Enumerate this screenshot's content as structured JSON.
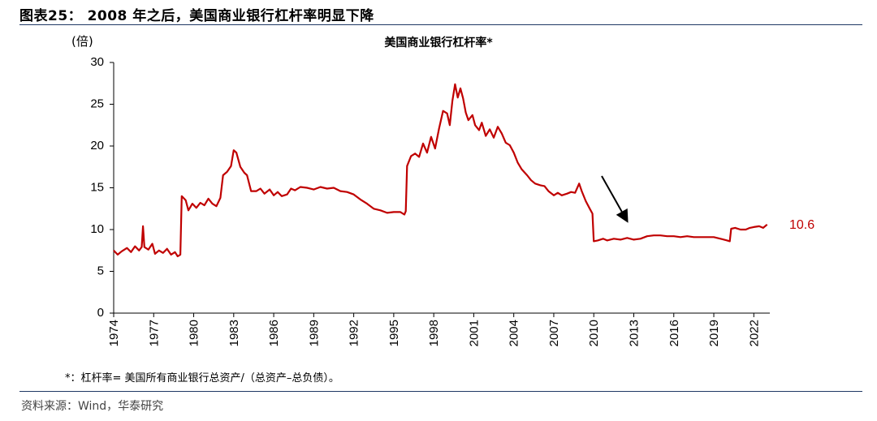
{
  "figure_title": "图表25： 2008 年之后，美国商业银行杠杆率明显下降",
  "unit_label": "(倍)",
  "note": "*：杠杆率= 美国所有商业银行总资产/（总资产–总负债）。",
  "source": "资料来源：Wind，华泰研究",
  "colors": {
    "series": "#c00000",
    "rule": "#1f3864",
    "axis": "#000000"
  },
  "chart_data": {
    "type": "line",
    "title": "美国商业银行杠杆率*",
    "xlabel": "",
    "ylabel": "(倍)",
    "ylim": [
      0,
      30
    ],
    "xlim": [
      1974,
      2023.2
    ],
    "y_ticks": [
      0,
      5,
      10,
      15,
      20,
      25,
      30
    ],
    "x_ticks": [
      "1974",
      "1977",
      "1980",
      "1983",
      "1986",
      "1989",
      "1992",
      "1995",
      "1998",
      "2001",
      "2004",
      "2007",
      "2010",
      "2013",
      "2016",
      "2019",
      "2022"
    ],
    "grid": false,
    "end_label": "10.6",
    "annotation": "arrow-down",
    "series": [
      {
        "values": [
          [
            1974.0,
            7.5
          ],
          [
            1974.3,
            7.0
          ],
          [
            1974.6,
            7.4
          ],
          [
            1975.0,
            7.8
          ],
          [
            1975.3,
            7.3
          ],
          [
            1975.6,
            8.0
          ],
          [
            1975.9,
            7.5
          ],
          [
            1976.1,
            7.9
          ],
          [
            1976.2,
            10.4
          ],
          [
            1976.3,
            7.9
          ],
          [
            1976.6,
            7.6
          ],
          [
            1976.9,
            8.3
          ],
          [
            1977.1,
            7.1
          ],
          [
            1977.4,
            7.5
          ],
          [
            1977.7,
            7.2
          ],
          [
            1978.0,
            7.7
          ],
          [
            1978.3,
            7.0
          ],
          [
            1978.6,
            7.3
          ],
          [
            1978.8,
            6.8
          ],
          [
            1979.0,
            7.0
          ],
          [
            1979.1,
            14.0
          ],
          [
            1979.4,
            13.5
          ],
          [
            1979.6,
            12.3
          ],
          [
            1979.9,
            13.1
          ],
          [
            1980.2,
            12.6
          ],
          [
            1980.5,
            13.2
          ],
          [
            1980.8,
            12.9
          ],
          [
            1981.1,
            13.7
          ],
          [
            1981.4,
            13.1
          ],
          [
            1981.7,
            12.8
          ],
          [
            1982.0,
            13.8
          ],
          [
            1982.2,
            16.5
          ],
          [
            1982.5,
            16.9
          ],
          [
            1982.8,
            17.6
          ],
          [
            1983.0,
            19.5
          ],
          [
            1983.2,
            19.2
          ],
          [
            1983.5,
            17.5
          ],
          [
            1983.8,
            16.8
          ],
          [
            1984.0,
            16.5
          ],
          [
            1984.3,
            14.6
          ],
          [
            1984.7,
            14.6
          ],
          [
            1985.0,
            14.9
          ],
          [
            1985.3,
            14.3
          ],
          [
            1985.7,
            14.8
          ],
          [
            1986.0,
            14.1
          ],
          [
            1986.3,
            14.5
          ],
          [
            1986.6,
            14.0
          ],
          [
            1987.0,
            14.2
          ],
          [
            1987.3,
            14.9
          ],
          [
            1987.6,
            14.7
          ],
          [
            1988.0,
            15.1
          ],
          [
            1988.5,
            15.0
          ],
          [
            1989.0,
            14.8
          ],
          [
            1989.5,
            15.1
          ],
          [
            1990.0,
            14.9
          ],
          [
            1990.5,
            15.0
          ],
          [
            1991.0,
            14.6
          ],
          [
            1991.5,
            14.5
          ],
          [
            1992.0,
            14.2
          ],
          [
            1992.5,
            13.6
          ],
          [
            1993.0,
            13.1
          ],
          [
            1993.5,
            12.5
          ],
          [
            1994.0,
            12.3
          ],
          [
            1994.5,
            12.0
          ],
          [
            1995.0,
            12.1
          ],
          [
            1995.5,
            12.1
          ],
          [
            1995.8,
            11.8
          ],
          [
            1995.9,
            12.2
          ],
          [
            1996.0,
            17.6
          ],
          [
            1996.3,
            18.8
          ],
          [
            1996.6,
            19.1
          ],
          [
            1996.9,
            18.7
          ],
          [
            1997.2,
            20.3
          ],
          [
            1997.5,
            19.2
          ],
          [
            1997.8,
            21.1
          ],
          [
            1998.1,
            19.7
          ],
          [
            1998.4,
            22.1
          ],
          [
            1998.7,
            24.2
          ],
          [
            1999.0,
            23.9
          ],
          [
            1999.2,
            22.5
          ],
          [
            1999.4,
            25.4
          ],
          [
            1999.6,
            27.4
          ],
          [
            1999.8,
            25.8
          ],
          [
            2000.0,
            26.9
          ],
          [
            2000.2,
            25.7
          ],
          [
            2000.4,
            24.0
          ],
          [
            2000.6,
            23.1
          ],
          [
            2000.9,
            23.7
          ],
          [
            2001.1,
            22.5
          ],
          [
            2001.4,
            21.9
          ],
          [
            2001.6,
            22.8
          ],
          [
            2001.9,
            21.2
          ],
          [
            2002.2,
            22.0
          ],
          [
            2002.5,
            21.0
          ],
          [
            2002.8,
            22.3
          ],
          [
            2003.1,
            21.5
          ],
          [
            2003.4,
            20.4
          ],
          [
            2003.7,
            20.1
          ],
          [
            2004.0,
            19.2
          ],
          [
            2004.3,
            18.0
          ],
          [
            2004.6,
            17.2
          ],
          [
            2005.0,
            16.5
          ],
          [
            2005.3,
            15.9
          ],
          [
            2005.6,
            15.5
          ],
          [
            2006.0,
            15.3
          ],
          [
            2006.3,
            15.2
          ],
          [
            2006.6,
            14.6
          ],
          [
            2007.0,
            14.1
          ],
          [
            2007.3,
            14.4
          ],
          [
            2007.6,
            14.1
          ],
          [
            2008.0,
            14.3
          ],
          [
            2008.3,
            14.5
          ],
          [
            2008.6,
            14.4
          ],
          [
            2008.9,
            15.5
          ],
          [
            2009.1,
            14.6
          ],
          [
            2009.4,
            13.4
          ],
          [
            2009.7,
            12.5
          ],
          [
            2009.9,
            11.9
          ],
          [
            2010.0,
            8.6
          ],
          [
            2010.3,
            8.7
          ],
          [
            2010.7,
            8.9
          ],
          [
            2011.0,
            8.7
          ],
          [
            2011.5,
            8.9
          ],
          [
            2012.0,
            8.8
          ],
          [
            2012.5,
            9.0
          ],
          [
            2013.0,
            8.8
          ],
          [
            2013.5,
            8.9
          ],
          [
            2014.0,
            9.2
          ],
          [
            2014.5,
            9.3
          ],
          [
            2015.0,
            9.3
          ],
          [
            2015.5,
            9.2
          ],
          [
            2016.0,
            9.2
          ],
          [
            2016.5,
            9.1
          ],
          [
            2017.0,
            9.2
          ],
          [
            2017.5,
            9.1
          ],
          [
            2018.0,
            9.1
          ],
          [
            2018.5,
            9.1
          ],
          [
            2019.0,
            9.1
          ],
          [
            2019.5,
            8.9
          ],
          [
            2020.0,
            8.7
          ],
          [
            2020.2,
            8.6
          ],
          [
            2020.3,
            10.1
          ],
          [
            2020.6,
            10.2
          ],
          [
            2021.0,
            10.0
          ],
          [
            2021.4,
            10.0
          ],
          [
            2021.7,
            10.2
          ],
          [
            2022.0,
            10.3
          ],
          [
            2022.4,
            10.4
          ],
          [
            2022.7,
            10.2
          ],
          [
            2023.0,
            10.6
          ]
        ]
      }
    ]
  }
}
